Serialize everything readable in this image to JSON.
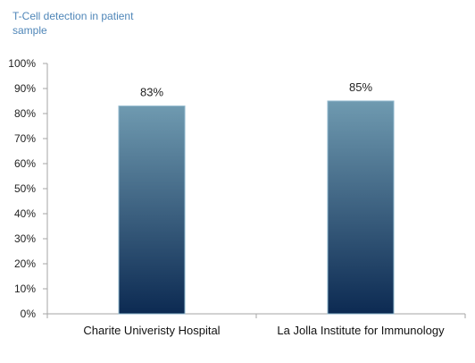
{
  "chart_title": "T-Cell detection in patient sample",
  "chart_data": {
    "type": "bar",
    "title": "T-Cell detection in patient sample",
    "categories": [
      "Charite Univeristy Hospital",
      "La Jolla Institute for Immunology"
    ],
    "values": [
      83,
      85
    ],
    "data_labels": [
      "83%",
      "85%"
    ],
    "yticks": [
      "0%",
      "10%",
      "20%",
      "30%",
      "40%",
      "50%",
      "60%",
      "70%",
      "80%",
      "90%",
      "100%"
    ],
    "ylim": [
      0,
      100
    ],
    "xlabel": "",
    "ylabel": "",
    "grid": false,
    "colors": {
      "bar_top": "#6f9ab0",
      "bar_bottom": "#0c2a52",
      "axis": "#a6a6a6"
    }
  }
}
